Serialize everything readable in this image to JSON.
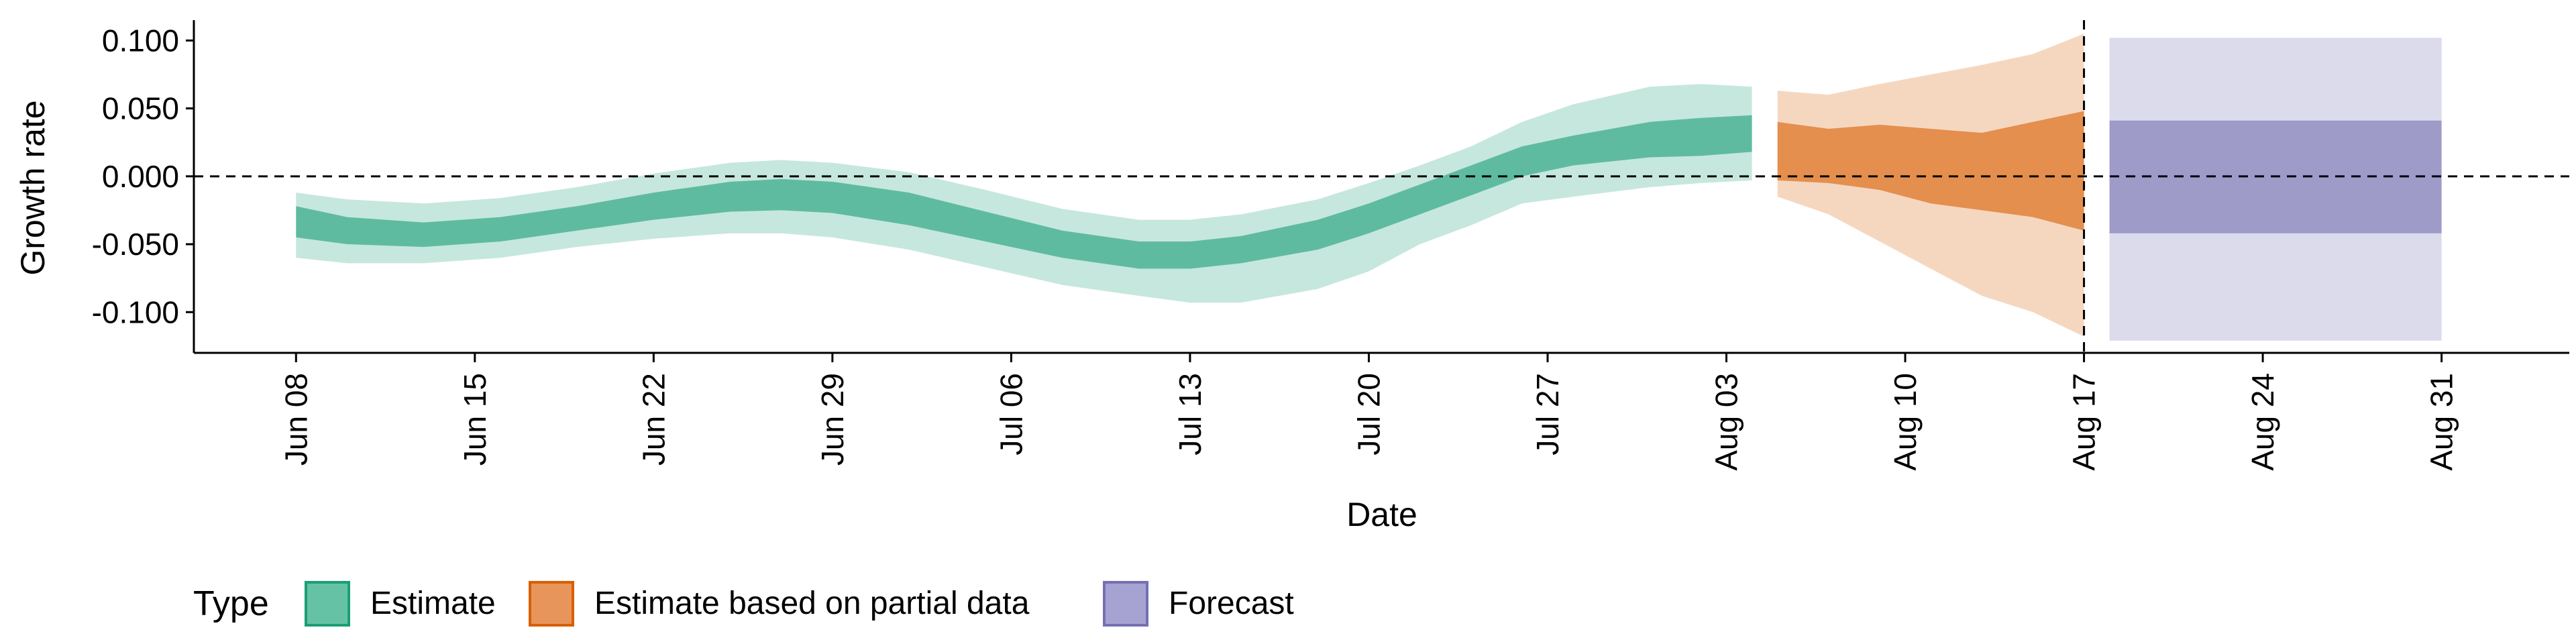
{
  "chart_data": {
    "type": "area",
    "xlabel": "Date",
    "ylabel": "Growth rate",
    "x_ticks": [
      "Jun 08",
      "Jun 15",
      "Jun 22",
      "Jun 29",
      "Jul 06",
      "Jul 13",
      "Jul 20",
      "Jul 27",
      "Aug 03",
      "Aug 10",
      "Aug 17",
      "Aug 24",
      "Aug 31"
    ],
    "y_ticks": [
      "0.100",
      "0.050",
      "0.000",
      "-0.050",
      "-0.100"
    ],
    "y_tick_values": [
      0.1,
      0.05,
      0,
      -0.05,
      -0.1
    ],
    "ylim": [
      -0.13,
      0.115
    ],
    "xlim": [
      "2020-06-04",
      "2020-09-05"
    ],
    "reference_line_y": 0,
    "reference_line_date": "2020-08-17",
    "grid": false,
    "legend": {
      "title": "Type",
      "position": "bottom-left",
      "entries": [
        {
          "label": "Estimate",
          "fill": "#66c2a5",
          "stroke": "#1b9e77"
        },
        {
          "label": "Estimate based on partial data",
          "fill": "#e7955a",
          "stroke": "#d95f02"
        },
        {
          "label": "Forecast",
          "fill": "#a6a3d2",
          "stroke": "#7570b3"
        }
      ]
    },
    "series": [
      {
        "name": "Estimate",
        "color": "#1b9e77",
        "dates": [
          "2020-06-08",
          "2020-06-10",
          "2020-06-13",
          "2020-06-16",
          "2020-06-19",
          "2020-06-22",
          "2020-06-25",
          "2020-06-27",
          "2020-06-29",
          "2020-07-02",
          "2020-07-05",
          "2020-07-08",
          "2020-07-11",
          "2020-07-13",
          "2020-07-15",
          "2020-07-18",
          "2020-07-20",
          "2020-07-22",
          "2020-07-24",
          "2020-07-26",
          "2020-07-28",
          "2020-07-31",
          "2020-08-02",
          "2020-08-04"
        ],
        "outer_upper": [
          -0.012,
          -0.017,
          -0.02,
          -0.016,
          -0.008,
          0.002,
          0.01,
          0.012,
          0.01,
          0.003,
          -0.01,
          -0.024,
          -0.032,
          -0.032,
          -0.028,
          -0.017,
          -0.005,
          0.008,
          0.022,
          0.04,
          0.053,
          0.066,
          0.068,
          0.066
        ],
        "inner_upper": [
          -0.022,
          -0.03,
          -0.034,
          -0.03,
          -0.022,
          -0.012,
          -0.004,
          -0.002,
          -0.004,
          -0.012,
          -0.026,
          -0.04,
          -0.048,
          -0.048,
          -0.044,
          -0.032,
          -0.02,
          -0.006,
          0.008,
          0.022,
          0.03,
          0.04,
          0.043,
          0.045
        ],
        "inner_lower": [
          -0.045,
          -0.05,
          -0.052,
          -0.048,
          -0.04,
          -0.032,
          -0.026,
          -0.025,
          -0.027,
          -0.036,
          -0.048,
          -0.06,
          -0.068,
          -0.068,
          -0.064,
          -0.054,
          -0.042,
          -0.028,
          -0.014,
          0.0,
          0.008,
          0.014,
          0.015,
          0.018
        ],
        "outer_lower": [
          -0.06,
          -0.064,
          -0.064,
          -0.06,
          -0.052,
          -0.046,
          -0.042,
          -0.042,
          -0.045,
          -0.054,
          -0.067,
          -0.08,
          -0.088,
          -0.093,
          -0.093,
          -0.083,
          -0.07,
          -0.05,
          -0.036,
          -0.02,
          -0.015,
          -0.008,
          -0.005,
          -0.003
        ]
      },
      {
        "name": "Estimate based on partial data",
        "color": "#d95f02",
        "dates": [
          "2020-08-05",
          "2020-08-07",
          "2020-08-09",
          "2020-08-11",
          "2020-08-13",
          "2020-08-15",
          "2020-08-17"
        ],
        "outer_upper": [
          0.063,
          0.06,
          0.068,
          0.075,
          0.082,
          0.09,
          0.105
        ],
        "inner_upper": [
          0.04,
          0.035,
          0.038,
          0.035,
          0.032,
          0.04,
          0.048
        ],
        "inner_lower": [
          -0.003,
          -0.005,
          -0.01,
          -0.02,
          -0.025,
          -0.03,
          -0.04
        ],
        "outer_lower": [
          -0.015,
          -0.028,
          -0.048,
          -0.068,
          -0.088,
          -0.1,
          -0.118
        ]
      },
      {
        "name": "Forecast",
        "color": "#7570b3",
        "dates": [
          "2020-08-18",
          "2020-08-31"
        ],
        "outer_upper": [
          0.102,
          0.102
        ],
        "inner_upper": [
          0.041,
          0.041
        ],
        "inner_lower": [
          -0.042,
          -0.042
        ],
        "outer_lower": [
          -0.121,
          -0.121
        ]
      }
    ]
  }
}
